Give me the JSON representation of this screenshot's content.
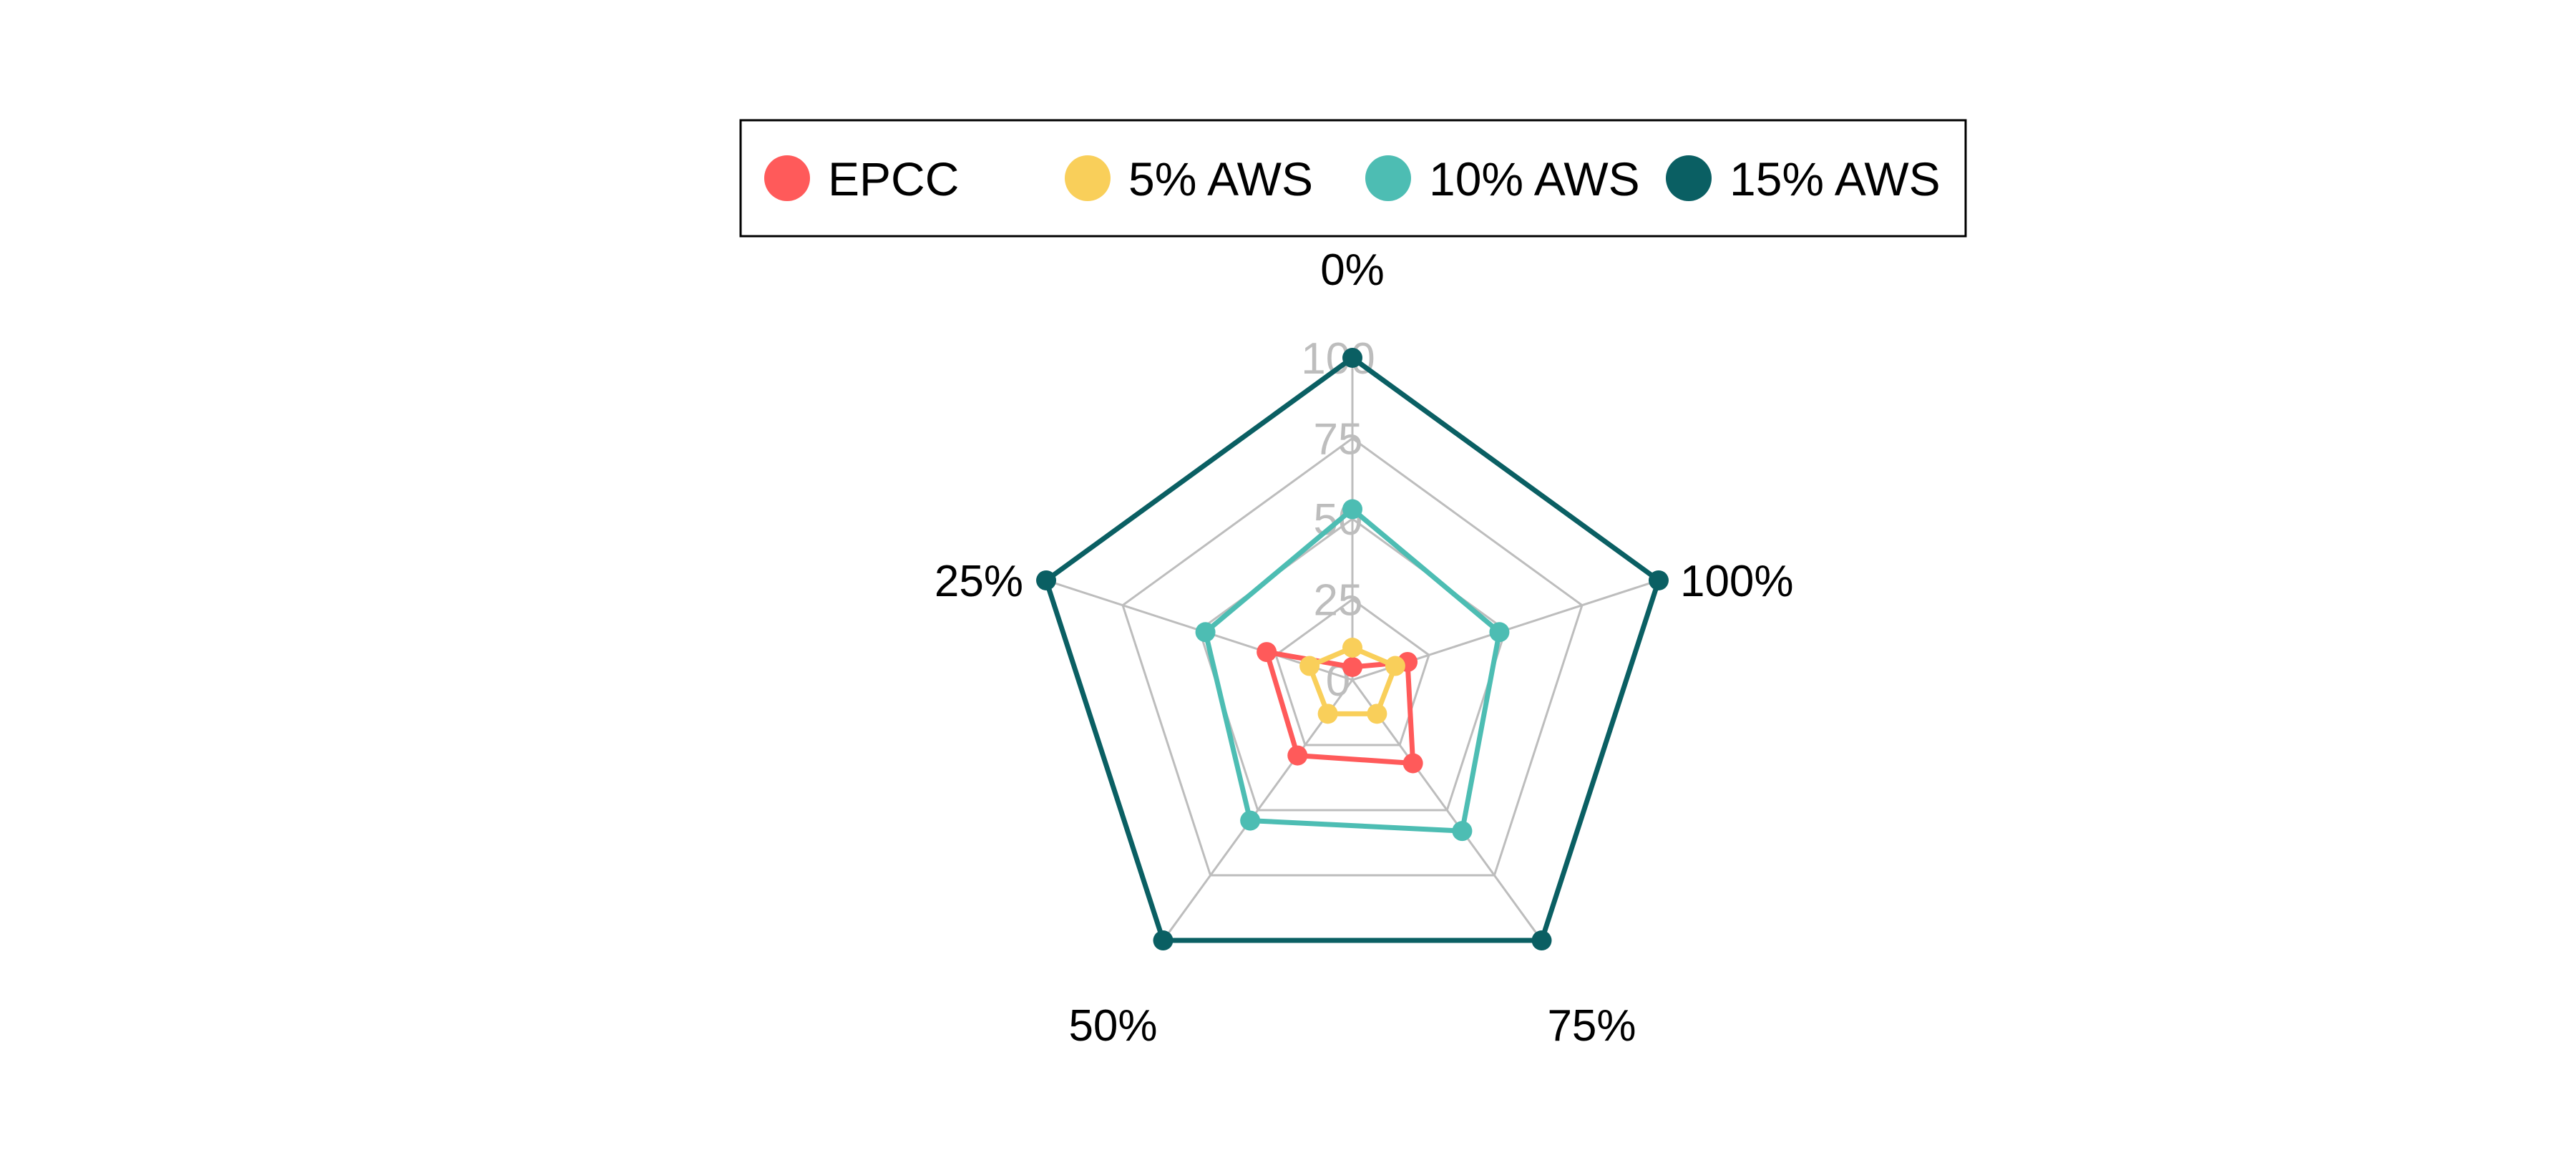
{
  "chart_data": {
    "type": "radar",
    "axes": [
      "0%",
      "100%",
      "75%",
      "50%",
      "25%"
    ],
    "radial_ticks": [
      "0",
      "25",
      "50",
      "75",
      "100"
    ],
    "rlim": [
      0,
      100
    ],
    "grid": true,
    "legend_position": "top",
    "series": [
      {
        "name": "EPCC",
        "color": "#ff5a5a",
        "values": [
          4,
          18,
          32,
          29,
          28
        ]
      },
      {
        "name": "5% AWS",
        "color": "#f9cf5a",
        "values": [
          10,
          14,
          13,
          13,
          14
        ]
      },
      {
        "name": "10% AWS",
        "color": "#4dbdb3",
        "values": [
          53,
          48,
          58,
          54,
          48
        ]
      },
      {
        "name": "15% AWS",
        "color": "#0a5f63",
        "values": [
          100,
          100,
          100,
          100,
          100
        ]
      }
    ]
  }
}
